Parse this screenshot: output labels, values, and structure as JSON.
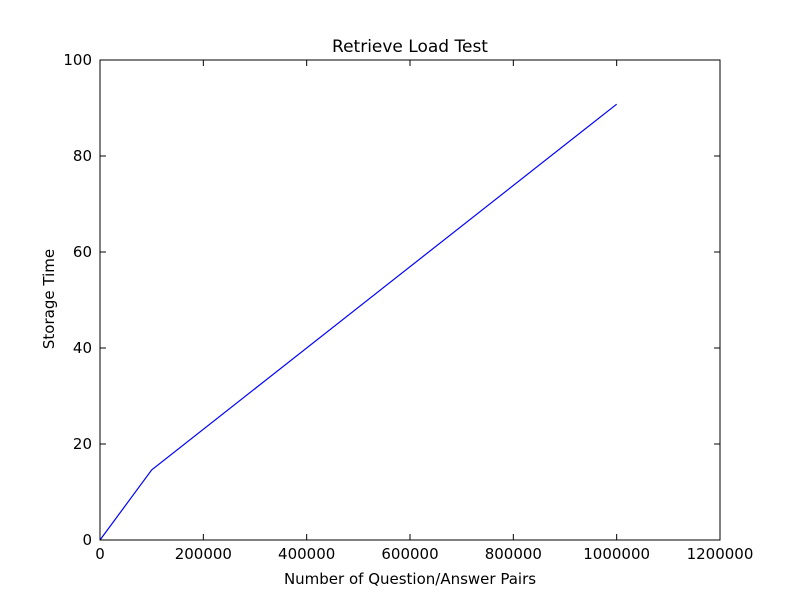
{
  "chart_data": {
    "type": "line",
    "title": "Retrieve Load Test",
    "xlabel": "Number of Question/Answer Pairs",
    "ylabel": "Storage Time",
    "xlim": [
      0,
      1200000
    ],
    "ylim": [
      0,
      100
    ],
    "xticks": [
      0,
      200000,
      400000,
      600000,
      800000,
      1000000,
      1200000
    ],
    "yticks": [
      0,
      20,
      40,
      60,
      80,
      100
    ],
    "grid": false,
    "legend": "none",
    "series": [
      {
        "color": "#0000ff",
        "x": [
          0,
          100000,
          1000000
        ],
        "y": [
          0,
          14.6,
          90.8
        ]
      }
    ]
  }
}
